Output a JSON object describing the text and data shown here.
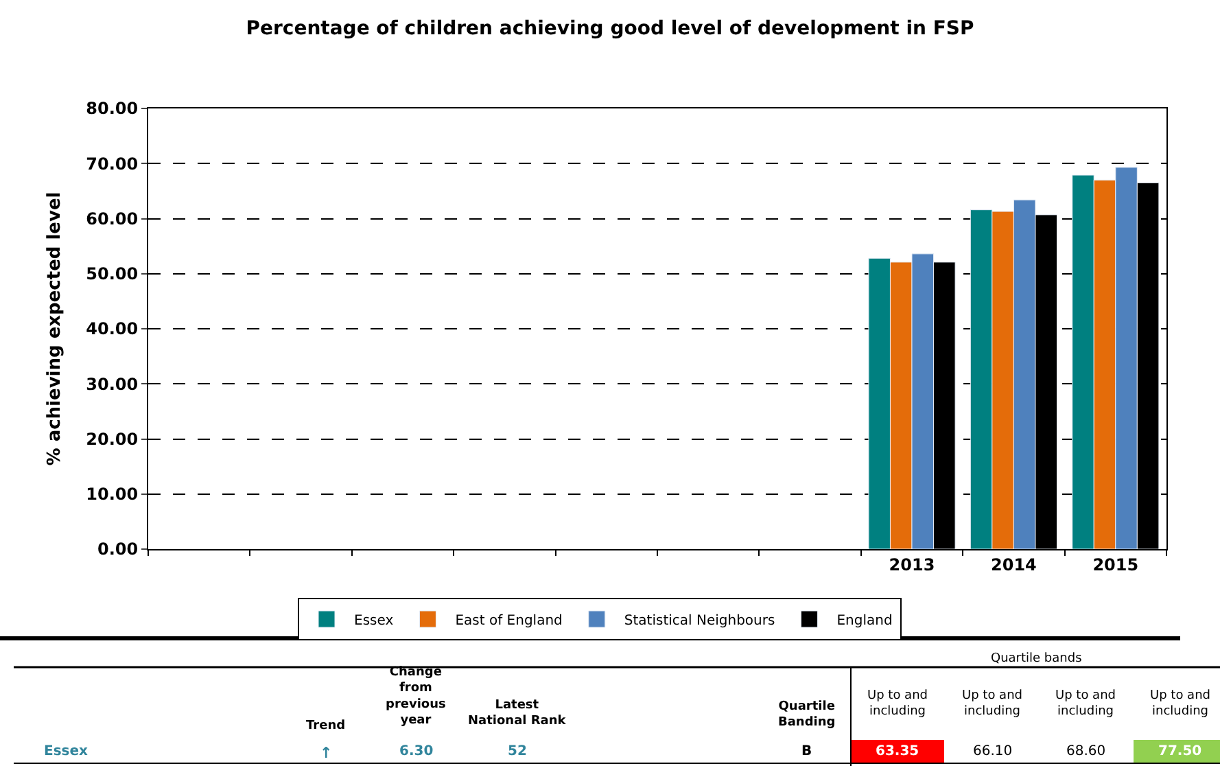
{
  "chart_data": {
    "type": "bar",
    "title": "Percentage of children achieving good level of development in FSP",
    "ylabel": "% achieving expected level",
    "categories": [
      null,
      null,
      null,
      null,
      null,
      null,
      null,
      "2013",
      "2014",
      "2015"
    ],
    "series": [
      {
        "name": "Essex",
        "color": "#008080",
        "values": [
          null,
          null,
          null,
          null,
          null,
          null,
          null,
          52.8,
          61.6,
          67.9
        ]
      },
      {
        "name": "East of England",
        "color": "#e46c0a",
        "values": [
          null,
          null,
          null,
          null,
          null,
          null,
          null,
          52.1,
          61.3,
          67.0
        ]
      },
      {
        "name": "Statistical Neighbours",
        "color": "#4f81bd",
        "values": [
          null,
          null,
          null,
          null,
          null,
          null,
          null,
          53.6,
          63.4,
          69.3
        ]
      },
      {
        "name": "England",
        "color": "#000000",
        "values": [
          null,
          null,
          null,
          null,
          null,
          null,
          null,
          52.1,
          60.7,
          66.5
        ]
      }
    ],
    "ylim": [
      0,
      80
    ],
    "yticks": [
      {
        "value": 0,
        "label": "0.00"
      },
      {
        "value": 10,
        "label": "10.00"
      },
      {
        "value": 20,
        "label": "20.00"
      },
      {
        "value": 30,
        "label": "30.00"
      },
      {
        "value": 40,
        "label": "40.00"
      },
      {
        "value": 50,
        "label": "50.00"
      },
      {
        "value": 60,
        "label": "60.00"
      },
      {
        "value": 70,
        "label": "70.00"
      },
      {
        "value": 80,
        "label": "80.00"
      }
    ],
    "grid": "y",
    "legend": "bottom",
    "annotations": [
      "Quartile bands",
      "Trend",
      "Change\nfrom\nprevious\nyear",
      "Latest\nNational Rank",
      "Quartile\nBanding",
      "Up to and\nincluding",
      "Up to and\nincluding",
      "Up to and\nincluding",
      "Up to and\nincluding",
      "Essex",
      "↑",
      "6.30",
      "52",
      "B",
      "63.35",
      "66.10",
      "68.60",
      "77.50"
    ]
  }
}
